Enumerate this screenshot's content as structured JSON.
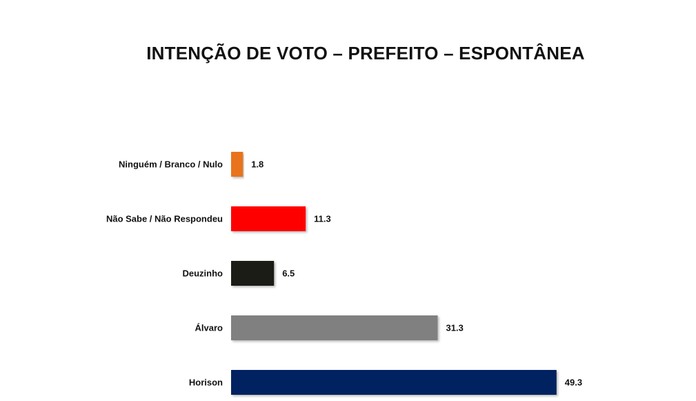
{
  "chart_data": {
    "type": "bar",
    "orientation": "horizontal",
    "title": "INTENÇÃO DE VOTO – PREFEITO – ESPONTÂNEA",
    "xlabel": "",
    "ylabel": "",
    "categories": [
      "Ninguém / Branco / Nulo",
      "Não Sabe / Não Respondeu",
      "Deuzinho",
      "Álvaro",
      "Horison"
    ],
    "values": [
      1.8,
      11.3,
      6.5,
      31.3,
      49.3
    ],
    "value_labels": [
      "1.8",
      "11.3",
      "6.5",
      "31.3",
      "49.3"
    ],
    "colors": [
      "#e8731a",
      "#ff0000",
      "#1f1c17",
      "#808080",
      "#002060"
    ],
    "xlim": [
      0,
      51
    ],
    "grid": false,
    "legend": "none"
  }
}
